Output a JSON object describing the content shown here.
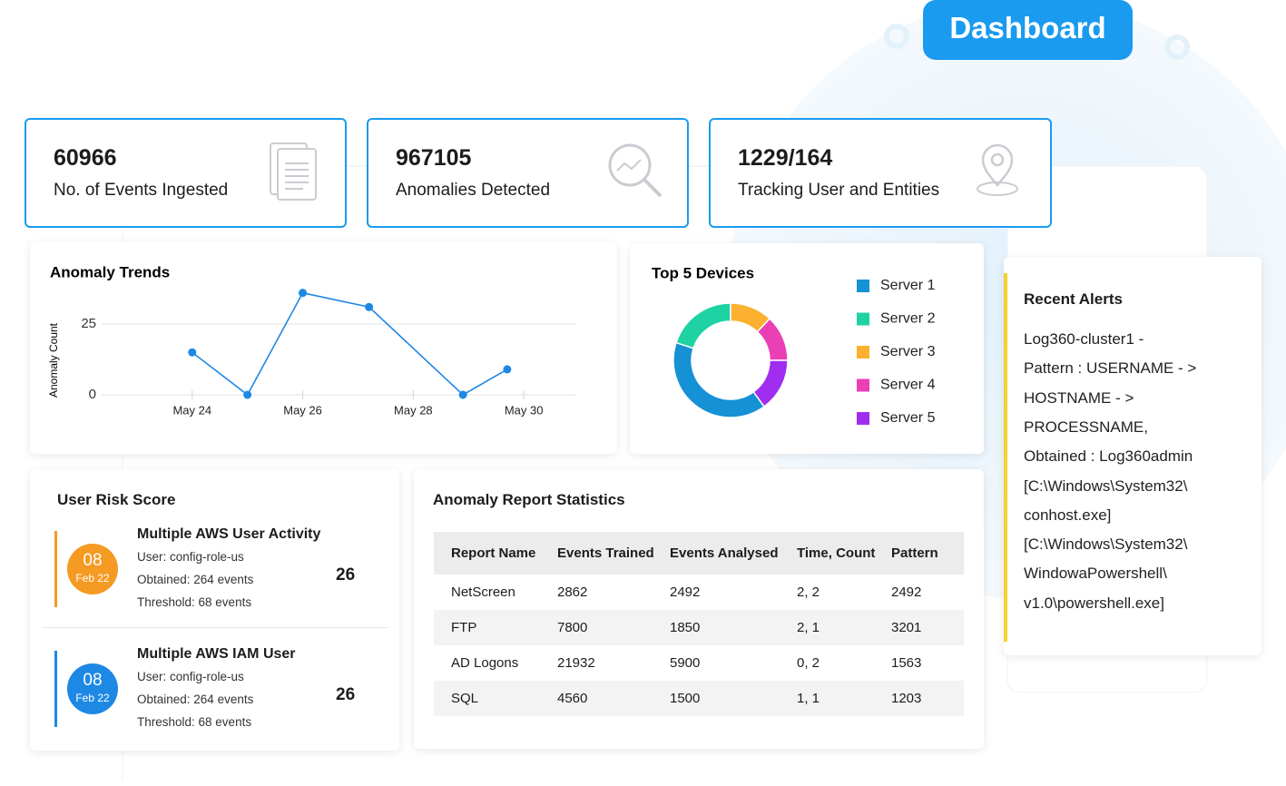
{
  "header": {
    "title": "Dashboard"
  },
  "stats": [
    {
      "value": 60966,
      "label": "No. of Events Ingested"
    },
    {
      "value": 967105,
      "label": "Anomalies Detected"
    },
    {
      "value": "1229/164",
      "label": "Tracking User and Entities"
    }
  ],
  "chart_data": [
    {
      "type": "line",
      "title": "Anomaly Trends",
      "y_label": "Anomaly Count",
      "x": [
        24,
        25,
        26,
        27.2,
        28.9,
        29.7
      ],
      "xlim": [
        23.15,
        30.95
      ],
      "xticks": [
        {
          "value": 24,
          "label": "May 24"
        },
        {
          "value": 26,
          "label": "May 26"
        },
        {
          "value": 28,
          "label": "May 28"
        },
        {
          "value": 30,
          "label": "May 30"
        }
      ],
      "series": [
        {
          "name": "Anomalies",
          "color": "#1e88e5",
          "values": [
            15,
            0,
            36,
            31,
            0,
            9
          ]
        }
      ],
      "ylim": [
        0,
        40
      ],
      "yticks": [
        0,
        25
      ],
      "grid": true
    },
    {
      "type": "donut",
      "title": "Top 5 Devices",
      "categories": [
        "Server 1",
        "Server 2",
        "Server 3",
        "Server 4",
        "Server 5"
      ],
      "values": [
        40,
        20,
        12,
        13,
        15
      ],
      "colors": [
        "#1591d5",
        "#1ed2a4",
        "#fbb12f",
        "#ea3fb5",
        "#a02df0"
      ]
    }
  ],
  "user_risk": {
    "title": "User Risk Score",
    "items": [
      {
        "day": "08",
        "month": "Feb 22",
        "title": "Multiple AWS User Activity",
        "user": "User: config-role-us",
        "obtained": "Obtained: 264 events",
        "threshold": "Threshold: 68 events",
        "score": 26,
        "color": "#f59a23"
      },
      {
        "day": "08",
        "month": "Feb 22",
        "title": "Multiple AWS IAM User",
        "user": "User: config-role-us",
        "obtained": "Obtained: 264 events",
        "threshold": "Threshold: 68 events",
        "score": 26,
        "color": "#1e88e5"
      }
    ]
  },
  "report_table": {
    "title": "Anomaly Report Statistics",
    "columns": [
      "Report Name",
      "Events Trained",
      "Events Analysed",
      "Time, Count",
      "Pattern"
    ],
    "rows": [
      [
        "NetScreen",
        2862,
        2492,
        "2, 2",
        2492
      ],
      [
        "FTP",
        7800,
        1850,
        "2, 1",
        3201
      ],
      [
        "AD Logons",
        21932,
        5900,
        "0, 2",
        1563
      ],
      [
        "SQL",
        4560,
        1500,
        "1, 1",
        1203
      ]
    ]
  },
  "recent_alerts": {
    "title": "Recent Alerts",
    "lines": [
      "Log360-cluster1 -",
      "Pattern : USERNAME - >",
      "HOSTNAME - >",
      "PROCESSNAME,",
      "Obtained : Log360admin",
      "[C:\\Windows\\System32\\",
      "conhost.exe]",
      "[C:\\Windows\\System32\\",
      "WindowaPowershell\\",
      "v1.0\\powershell.exe]"
    ]
  }
}
